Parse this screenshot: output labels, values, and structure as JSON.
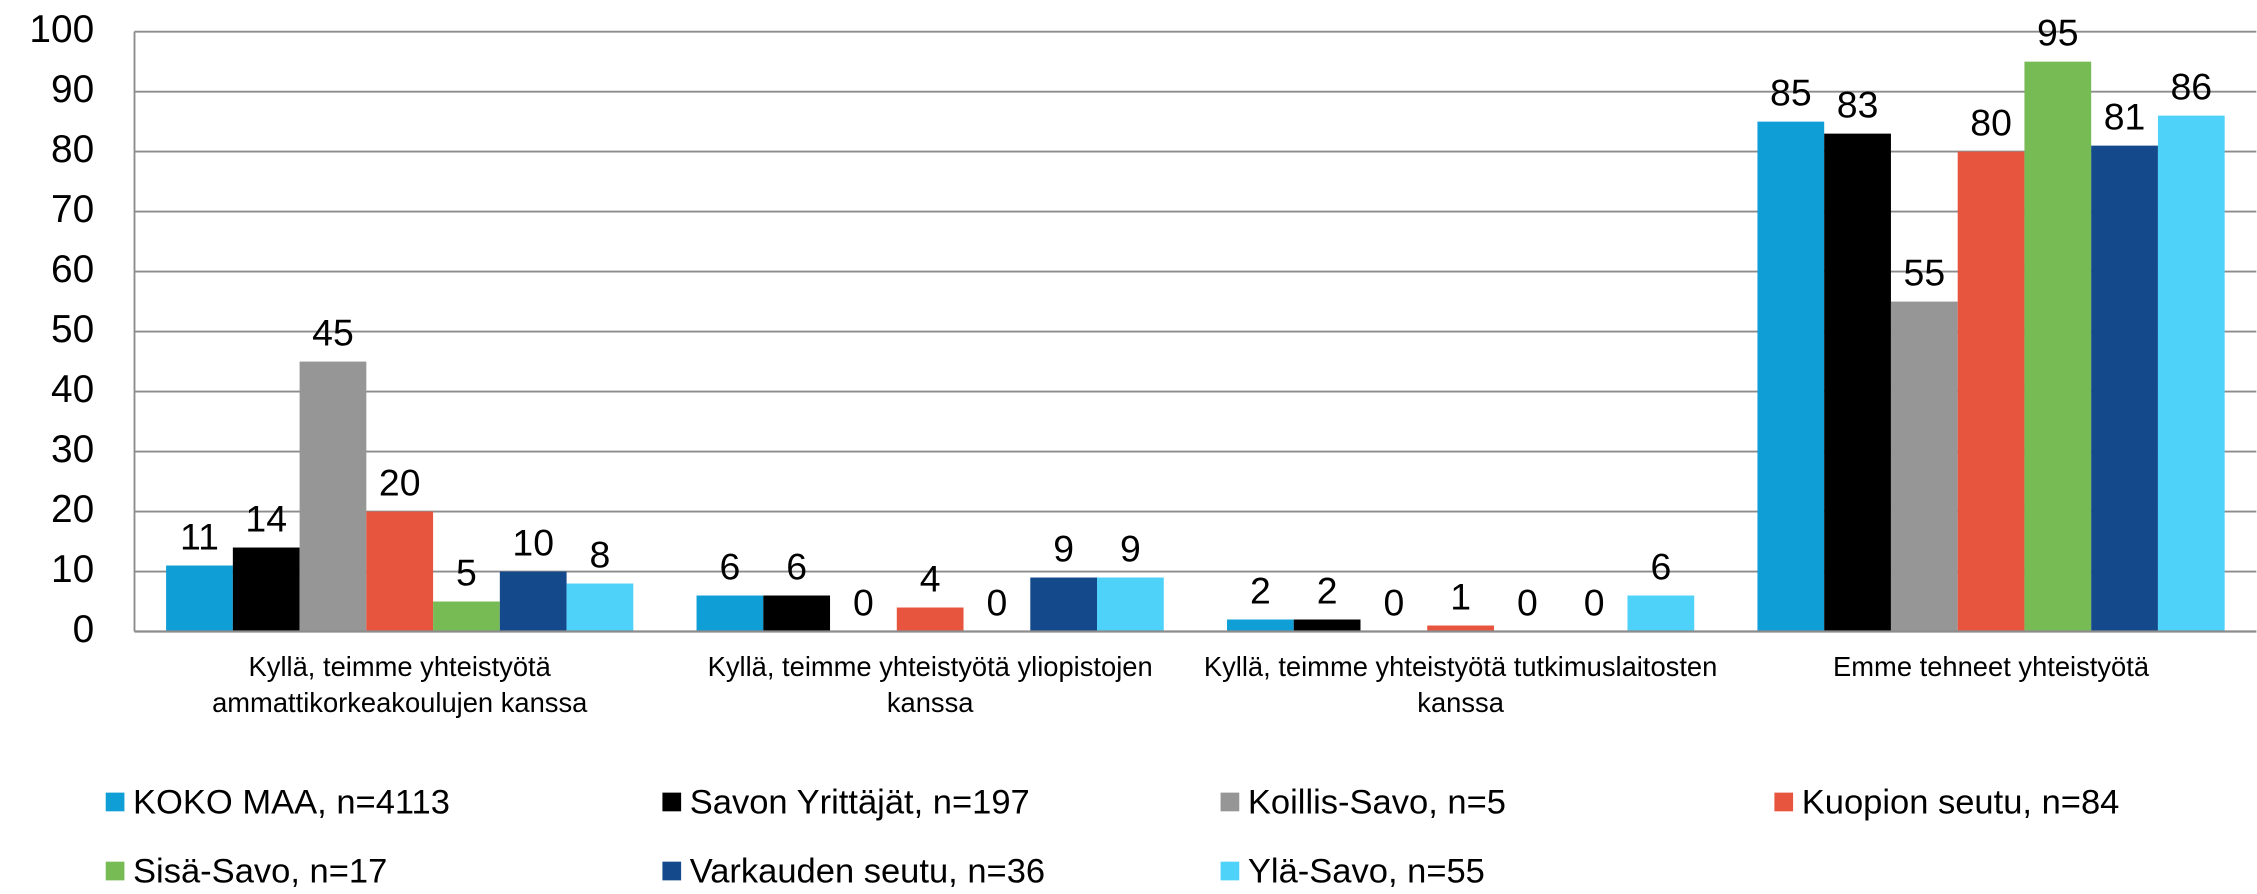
{
  "chart_data": {
    "type": "bar",
    "categories": [
      "Kyllä, teimme yhteistyötä ammattikorkeakoulujen kanssa",
      "Kyllä, teimme yhteistyötä yliopistojen kanssa",
      "Kyllä, teimme yhteistyötä tutkimuslaitosten kanssa",
      "Emme tehneet yhteistyötä"
    ],
    "series": [
      {
        "name": "KOKO MAA, n=4113",
        "color": "#0f9ed5",
        "values": [
          11,
          6,
          2,
          85
        ]
      },
      {
        "name": "Savon Yrittäjät, n=197",
        "color": "#000000",
        "values": [
          14,
          6,
          2,
          83
        ]
      },
      {
        "name": "Koillis-Savo, n=5",
        "color": "#969696",
        "values": [
          45,
          0,
          0,
          55
        ]
      },
      {
        "name": "Kuopion seutu, n=84",
        "color": "#e8553f",
        "values": [
          20,
          4,
          1,
          80
        ]
      },
      {
        "name": "Sisä-Savo, n=17",
        "color": "#77bb55",
        "values": [
          5,
          0,
          0,
          95
        ]
      },
      {
        "name": "Varkauden seutu, n=36",
        "color": "#144a8c",
        "values": [
          10,
          9,
          0,
          81
        ]
      },
      {
        "name": "Ylä-Savo, n=55",
        "color": "#4fd2fa",
        "values": [
          8,
          9,
          6,
          86
        ]
      }
    ],
    "ylim": [
      0,
      100
    ],
    "yticks": [
      0,
      10,
      20,
      30,
      40,
      50,
      60,
      70,
      80,
      90,
      100
    ],
    "grid": true,
    "legend": "bottom"
  }
}
